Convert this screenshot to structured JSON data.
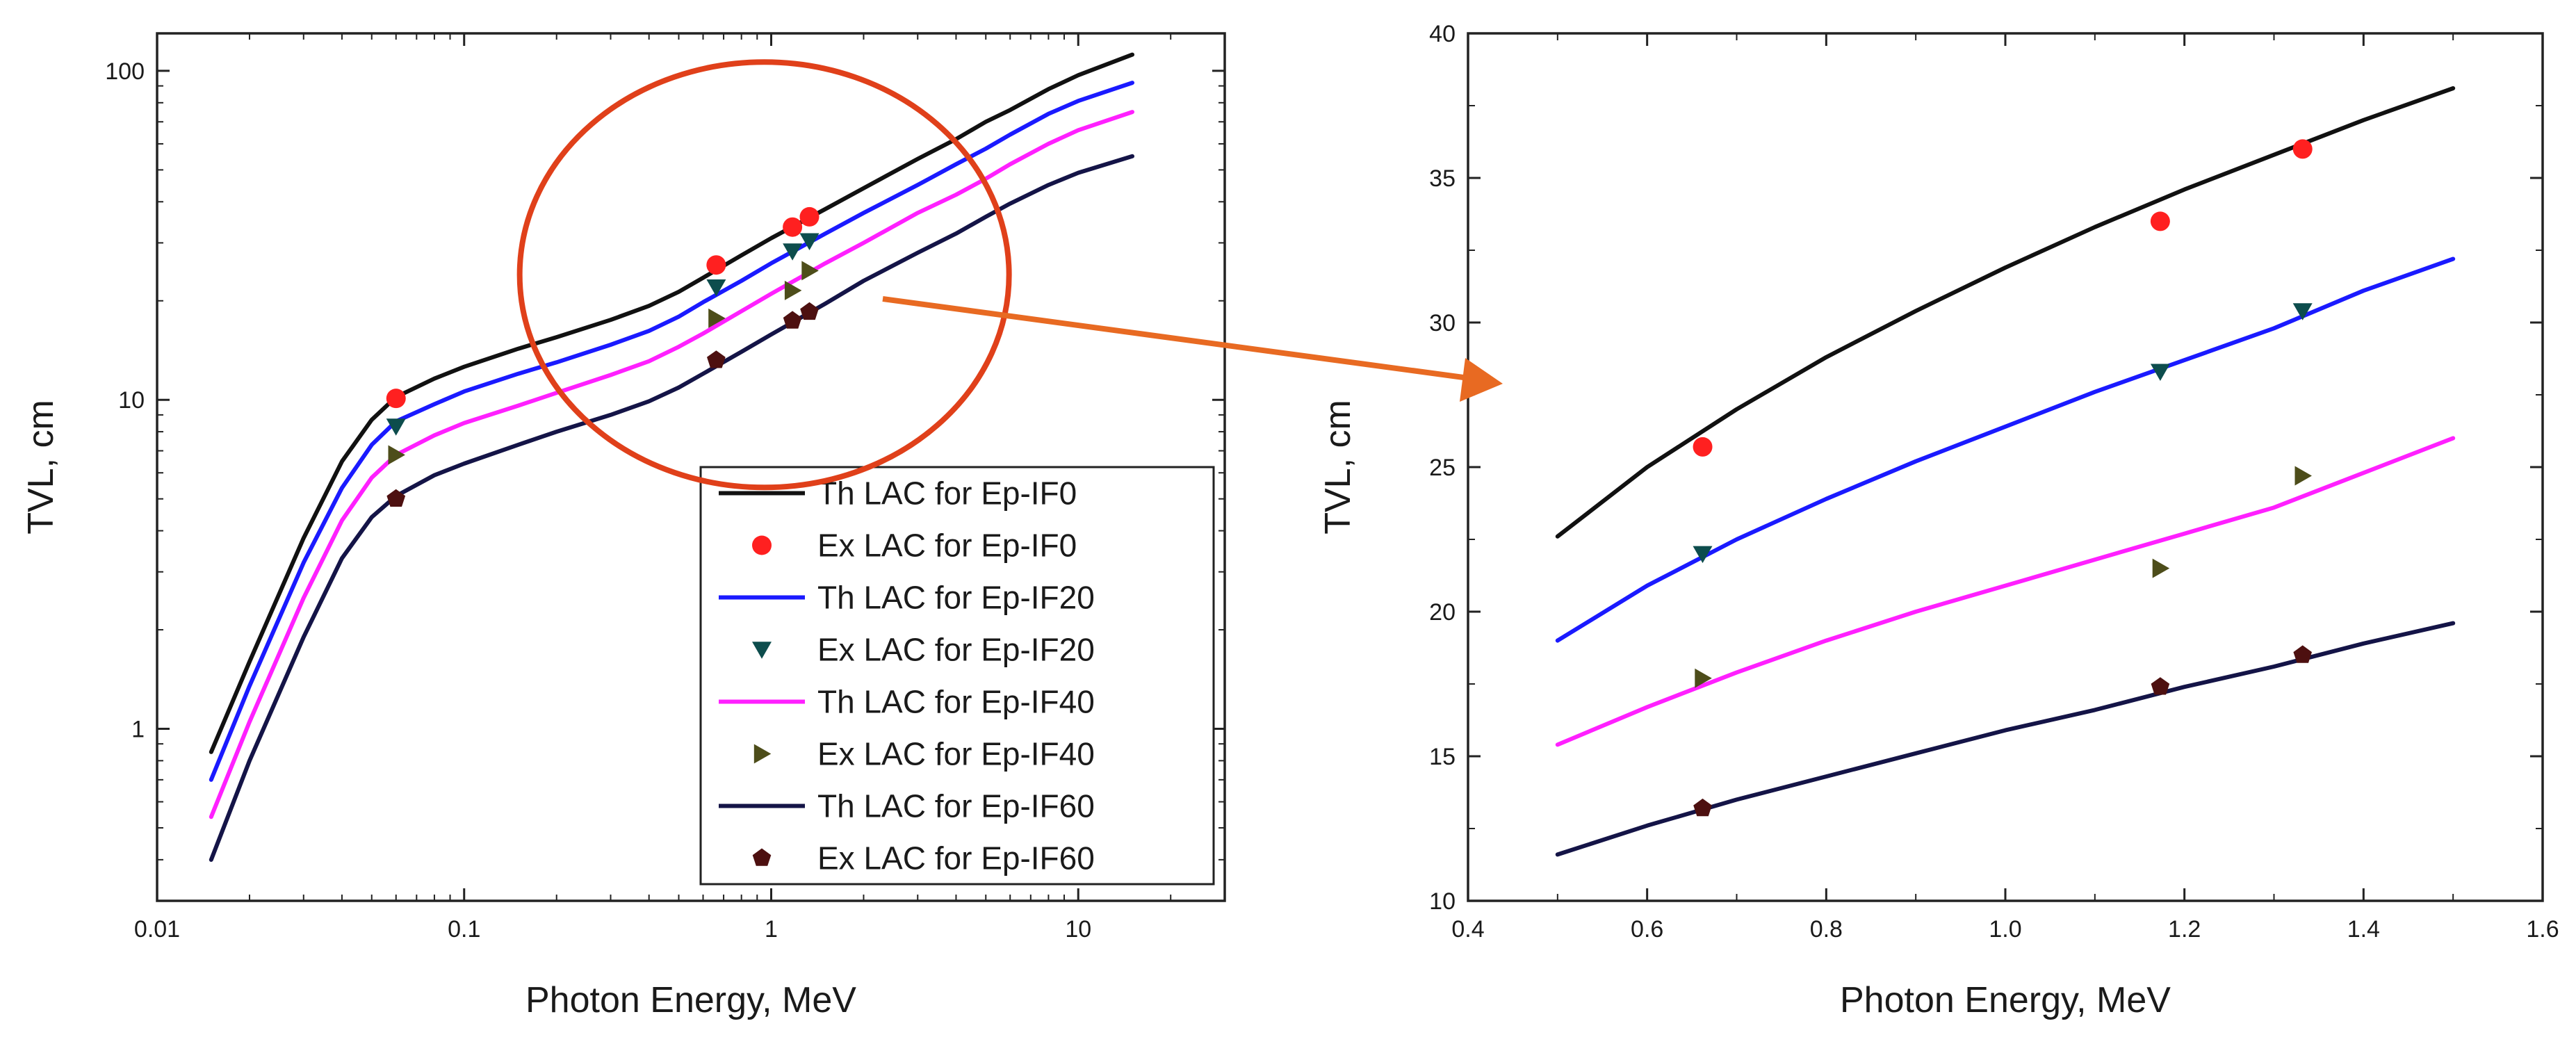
{
  "chart_data": [
    {
      "id": "left",
      "type": "line",
      "xscale": "log",
      "yscale": "log",
      "xlim": [
        0.01,
        30
      ],
      "ylim": [
        0.3,
        130
      ],
      "xticks": [
        0.01,
        0.1,
        1,
        10
      ],
      "xtick_labels": [
        "0.01",
        "0.1",
        "1",
        "10"
      ],
      "yticks": [
        1,
        10,
        100
      ],
      "ytick_labels": [
        "1",
        "10",
        "100"
      ],
      "xlabel": "Photon Energy, MeV",
      "ylabel": "TVL, cm",
      "legend_position": "bottom-right",
      "series": [
        {
          "name": "Th LAC for Ep-IF0",
          "kind": "line",
          "color": "#111111",
          "x": [
            0.015,
            0.02,
            0.03,
            0.04,
            0.05,
            0.06,
            0.08,
            0.1,
            0.15,
            0.2,
            0.3,
            0.4,
            0.5,
            0.6,
            0.8,
            1,
            1.5,
            2,
            3,
            4,
            5,
            6,
            8,
            10,
            15
          ],
          "y": [
            0.85,
            1.6,
            3.8,
            6.5,
            8.7,
            10.2,
            11.6,
            12.6,
            14.3,
            15.5,
            17.5,
            19.3,
            21.3,
            23.5,
            27.5,
            31.0,
            38.0,
            44.0,
            54.0,
            62.0,
            70.0,
            76.0,
            88.0,
            97.0,
            112.0
          ]
        },
        {
          "name": "Ex LAC for Ep-IF0",
          "kind": "marker",
          "marker": "circle",
          "color": "#ff2020",
          "x": [
            0.06,
            0.662,
            1.173,
            1.332
          ],
          "y": [
            10.1,
            25.7,
            33.5,
            36.0
          ]
        },
        {
          "name": "Th LAC for Ep-IF20",
          "kind": "line",
          "color": "#1a1aff",
          "x": [
            0.015,
            0.02,
            0.03,
            0.04,
            0.05,
            0.06,
            0.08,
            0.1,
            0.15,
            0.2,
            0.3,
            0.4,
            0.5,
            0.6,
            0.8,
            1,
            1.5,
            2,
            3,
            4,
            5,
            6,
            8,
            10,
            15
          ],
          "y": [
            0.7,
            1.35,
            3.2,
            5.4,
            7.3,
            8.6,
            9.7,
            10.6,
            12.0,
            13.0,
            14.7,
            16.2,
            17.9,
            19.8,
            23.0,
            26.0,
            32.0,
            37.0,
            45.0,
            52.0,
            58.0,
            64.0,
            74.0,
            81.0,
            92.0
          ]
        },
        {
          "name": "Ex LAC for Ep-IF20",
          "kind": "marker",
          "marker": "triangle-down",
          "color": "#0d4d4d",
          "x": [
            0.06,
            0.662,
            1.173,
            1.332
          ],
          "y": [
            8.3,
            22.0,
            28.3,
            30.4
          ]
        },
        {
          "name": "Th LAC for Ep-IF40",
          "kind": "line",
          "color": "#ff20ff",
          "x": [
            0.015,
            0.02,
            0.03,
            0.04,
            0.05,
            0.06,
            0.08,
            0.1,
            0.15,
            0.2,
            0.3,
            0.4,
            0.5,
            0.6,
            0.8,
            1,
            1.5,
            2,
            3,
            4,
            5,
            6,
            8,
            10,
            15
          ],
          "y": [
            0.54,
            1.05,
            2.5,
            4.3,
            5.8,
            6.8,
            7.8,
            8.5,
            9.6,
            10.5,
            11.9,
            13.1,
            14.5,
            15.9,
            18.6,
            21.0,
            26.0,
            30.0,
            37.0,
            42.0,
            47.0,
            52.0,
            60.0,
            66.0,
            75.0
          ]
        },
        {
          "name": "Ex LAC for Ep-IF40",
          "kind": "marker",
          "marker": "triangle-right",
          "color": "#4d4d1a",
          "x": [
            0.06,
            0.662,
            1.173,
            1.332
          ],
          "y": [
            6.8,
            17.7,
            21.5,
            24.7
          ]
        },
        {
          "name": "Th LAC for Ep-IF60",
          "kind": "line",
          "color": "#141447",
          "x": [
            0.015,
            0.02,
            0.03,
            0.04,
            0.05,
            0.06,
            0.08,
            0.1,
            0.15,
            0.2,
            0.3,
            0.4,
            0.5,
            0.6,
            0.8,
            1,
            1.5,
            2,
            3,
            4,
            5,
            6,
            8,
            10,
            15
          ],
          "y": [
            0.4,
            0.8,
            1.9,
            3.3,
            4.4,
            5.1,
            5.9,
            6.4,
            7.3,
            8.0,
            9.0,
            9.9,
            10.9,
            12.0,
            14.0,
            15.8,
            19.6,
            23.0,
            28.0,
            32.0,
            36.0,
            39.5,
            45.0,
            49.0,
            55.0
          ]
        },
        {
          "name": "Ex LAC for Ep-IF60",
          "kind": "marker",
          "marker": "pentagon",
          "color": "#4d1010",
          "x": [
            0.06,
            0.662,
            1.173,
            1.332
          ],
          "y": [
            5.0,
            13.2,
            17.4,
            18.5
          ]
        }
      ]
    },
    {
      "id": "right",
      "type": "line",
      "xscale": "linear",
      "yscale": "linear",
      "xlim": [
        0.4,
        1.6
      ],
      "ylim": [
        10,
        40
      ],
      "xticks": [
        0.4,
        0.6,
        0.8,
        1.0,
        1.2,
        1.4,
        1.6
      ],
      "xtick_labels": [
        "0.4",
        "0.6",
        "0.8",
        "1.0",
        "1.2",
        "1.4",
        "1.6"
      ],
      "yticks": [
        10,
        15,
        20,
        25,
        30,
        35,
        40
      ],
      "ytick_labels": [
        "10",
        "15",
        "20",
        "25",
        "30",
        "35",
        "40"
      ],
      "xlabel": "Photon Energy, MeV",
      "ylabel": "TVL, cm",
      "series": [
        {
          "name": "Th LAC for Ep-IF0",
          "kind": "line",
          "color": "#111111",
          "x": [
            0.5,
            0.6,
            0.7,
            0.8,
            0.9,
            1.0,
            1.1,
            1.2,
            1.3,
            1.4,
            1.5
          ],
          "y": [
            22.6,
            25.0,
            27.0,
            28.8,
            30.4,
            31.9,
            33.3,
            34.6,
            35.8,
            37.0,
            38.1
          ]
        },
        {
          "name": "Ex LAC for Ep-IF0",
          "kind": "marker",
          "marker": "circle",
          "color": "#ff2020",
          "x": [
            0.662,
            1.173,
            1.332
          ],
          "y": [
            25.7,
            33.5,
            36.0
          ]
        },
        {
          "name": "Th LAC for Ep-IF20",
          "kind": "line",
          "color": "#1a1aff",
          "x": [
            0.5,
            0.6,
            0.7,
            0.8,
            0.9,
            1.0,
            1.1,
            1.2,
            1.3,
            1.4,
            1.5
          ],
          "y": [
            19.0,
            20.9,
            22.5,
            23.9,
            25.2,
            26.4,
            27.6,
            28.7,
            29.8,
            31.1,
            32.2
          ]
        },
        {
          "name": "Ex LAC for Ep-IF20",
          "kind": "marker",
          "marker": "triangle-down",
          "color": "#0d4d4d",
          "x": [
            0.662,
            1.173,
            1.332
          ],
          "y": [
            22.0,
            28.3,
            30.4
          ]
        },
        {
          "name": "Th LAC for Ep-IF40",
          "kind": "line",
          "color": "#ff20ff",
          "x": [
            0.5,
            0.6,
            0.7,
            0.8,
            0.9,
            1.0,
            1.1,
            1.2,
            1.3,
            1.4,
            1.5
          ],
          "y": [
            15.4,
            16.7,
            17.9,
            19.0,
            20.0,
            20.9,
            21.8,
            22.7,
            23.6,
            24.8,
            26.0
          ]
        },
        {
          "name": "Ex LAC for Ep-IF40",
          "kind": "marker",
          "marker": "triangle-right",
          "color": "#4d4d1a",
          "x": [
            0.662,
            1.173,
            1.332
          ],
          "y": [
            17.7,
            21.5,
            24.7
          ]
        },
        {
          "name": "Th LAC for Ep-IF60",
          "kind": "line",
          "color": "#141447",
          "x": [
            0.5,
            0.6,
            0.7,
            0.8,
            0.9,
            1.0,
            1.1,
            1.2,
            1.3,
            1.4,
            1.5
          ],
          "y": [
            11.6,
            12.6,
            13.5,
            14.3,
            15.1,
            15.9,
            16.6,
            17.4,
            18.1,
            18.9,
            19.6
          ]
        },
        {
          "name": "Ex LAC for Ep-IF60",
          "kind": "marker",
          "marker": "pentagon",
          "color": "#4d1010",
          "x": [
            0.662,
            1.173,
            1.332
          ],
          "y": [
            13.2,
            17.4,
            18.5
          ]
        }
      ]
    }
  ],
  "annotation": {
    "kind": "zoom-callout",
    "circle_color": "#e0401a",
    "arrow_color": "#e86a22"
  }
}
